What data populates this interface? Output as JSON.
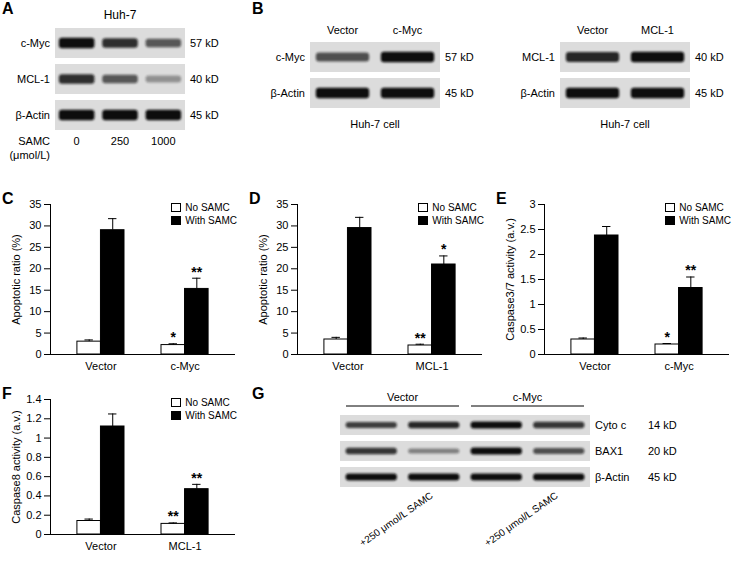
{
  "chart_data": [
    {
      "type": "blot",
      "panel": "A",
      "blots": [
        {
          "title": "Huh-7",
          "lane_title": [
            "SAMC",
            "(μmol/L)"
          ],
          "lanes": [
            0,
            250,
            1000
          ],
          "rows": [
            {
              "name": "c-Myc",
              "size": "57 kD",
              "intensity": [
                1.0,
                0.8,
                0.55
              ]
            },
            {
              "name": "MCL-1",
              "size": "40 kD",
              "intensity": [
                0.8,
                0.55,
                0.2
              ]
            },
            {
              "name": "β-Actin",
              "size": "45 kD",
              "intensity": [
                1.0,
                1.0,
                1.0
              ]
            }
          ]
        }
      ]
    },
    {
      "type": "blot",
      "panel": "B",
      "blots": [
        {
          "lanes": [
            "Vector",
            "c-Myc"
          ],
          "caption": "Huh-7 cell",
          "rows": [
            {
              "name": "c-Myc",
              "size": "57 kD",
              "intensity": [
                0.6,
                1.0
              ]
            },
            {
              "name": "β-Actin",
              "size": "45 kD",
              "intensity": [
                1.0,
                1.0
              ]
            }
          ]
        },
        {
          "lanes": [
            "Vector",
            "MCL-1"
          ],
          "caption": "Huh-7 cell",
          "rows": [
            {
              "name": "MCL-1",
              "size": "40 kD",
              "intensity": [
                0.85,
                1.0
              ]
            },
            {
              "name": "β-Actin",
              "size": "45 kD",
              "intensity": [
                1.0,
                1.0
              ]
            }
          ]
        }
      ]
    },
    {
      "type": "bar",
      "panel": "C",
      "categories": [
        "Vector",
        "c-Myc"
      ],
      "y_label": "Apoptotic ratio (%)",
      "ylim": [
        0,
        35
      ],
      "yticks": [
        0,
        5,
        10,
        15,
        20,
        25,
        30,
        35
      ],
      "legend": "top-right",
      "series": [
        {
          "name": "No SAMC",
          "color": "#ffffff",
          "values": [
            3,
            2.2
          ],
          "error": [
            0.4,
            0.3
          ],
          "significance": [
            null,
            "*"
          ]
        },
        {
          "name": "With SAMC",
          "color": "#000000",
          "values": [
            29,
            15.3
          ],
          "error": [
            2.7,
            2.5
          ],
          "significance": [
            null,
            "**"
          ]
        }
      ]
    },
    {
      "type": "bar",
      "panel": "D",
      "categories": [
        "Vector",
        "MCL-1"
      ],
      "y_label": "Apoptotic ratio (%)",
      "ylim": [
        0,
        35
      ],
      "yticks": [
        0,
        5,
        10,
        15,
        20,
        25,
        30,
        35
      ],
      "legend": "top-right",
      "series": [
        {
          "name": "No SAMC",
          "color": "#ffffff",
          "values": [
            3.5,
            2.1
          ],
          "error": [
            0.5,
            0.3
          ],
          "significance": [
            null,
            "**"
          ]
        },
        {
          "name": "With SAMC",
          "color": "#000000",
          "values": [
            29.5,
            21
          ],
          "error": [
            2.5,
            2
          ],
          "significance": [
            null,
            "*"
          ]
        }
      ]
    },
    {
      "type": "bar",
      "panel": "E",
      "categories": [
        "Vector",
        "c-Myc"
      ],
      "y_label": "Caspase3/7 activity (a.v.)",
      "ylim": [
        0,
        3
      ],
      "yticks": [
        0,
        0.5,
        1,
        1.5,
        2,
        2.5,
        3
      ],
      "legend": "top-right",
      "series": [
        {
          "name": "No SAMC",
          "color": "#ffffff",
          "values": [
            0.3,
            0.2
          ],
          "error": [
            0.03,
            0.02
          ],
          "significance": [
            null,
            "*"
          ]
        },
        {
          "name": "With SAMC",
          "color": "#000000",
          "values": [
            2.38,
            1.33
          ],
          "error": [
            0.18,
            0.22
          ],
          "significance": [
            null,
            "**"
          ]
        }
      ]
    },
    {
      "type": "bar",
      "panel": "F",
      "categories": [
        "Vector",
        "MCL-1"
      ],
      "y_label": "Caspase8 activity (a.v.)",
      "ylim": [
        0,
        1.4
      ],
      "yticks": [
        0,
        0.2,
        0.4,
        0.6,
        0.8,
        1,
        1.2,
        1.4
      ],
      "legend": "top-right",
      "series": [
        {
          "name": "No SAMC",
          "color": "#ffffff",
          "values": [
            0.14,
            0.11
          ],
          "error": [
            0.02,
            0.01
          ],
          "significance": [
            null,
            "**"
          ]
        },
        {
          "name": "With SAMC",
          "color": "#000000",
          "values": [
            1.12,
            0.47
          ],
          "error": [
            0.13,
            0.05
          ],
          "significance": [
            null,
            "**"
          ]
        }
      ]
    },
    {
      "type": "blot",
      "panel": "G",
      "blots": [
        {
          "groups": [
            "Vector",
            "c-Myc"
          ],
          "lanes": [
            null,
            "+250 μmol/L SAMC",
            null,
            "+250 μmol/L SAMC"
          ],
          "rows": [
            {
              "name": "Cyto c",
              "size": "14 kD",
              "intensity": [
                0.7,
                0.85,
                1.0,
                0.75
              ]
            },
            {
              "name": "BAX1",
              "size": "20 kD",
              "intensity": [
                0.75,
                0.3,
                1.0,
                0.6
              ]
            },
            {
              "name": "β-Actin",
              "size": "45 kD",
              "intensity": [
                1.0,
                1.0,
                1.0,
                1.0
              ]
            }
          ]
        }
      ]
    }
  ]
}
